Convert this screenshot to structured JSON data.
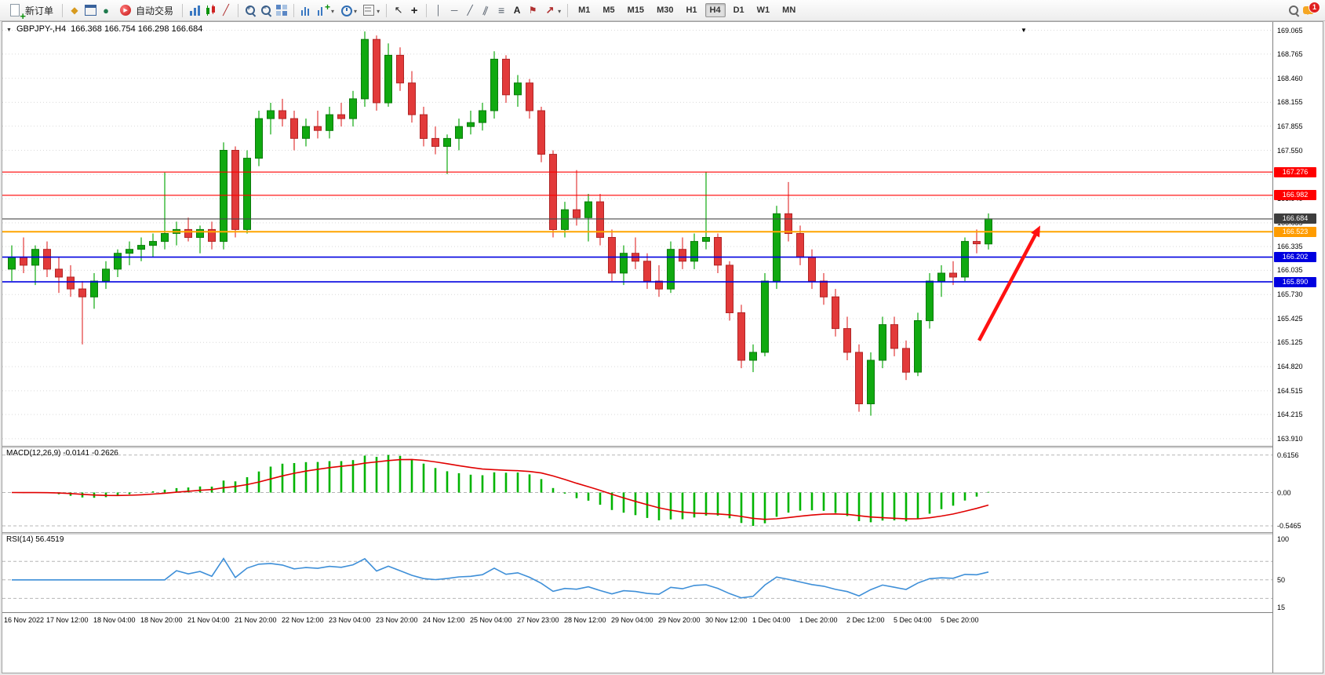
{
  "toolbar": {
    "new_order_label": "新订单",
    "auto_trading_label": "自动交易",
    "timeframes": [
      "M1",
      "M5",
      "M15",
      "M30",
      "H1",
      "H4",
      "D1",
      "W1",
      "MN"
    ],
    "active_timeframe": "H4",
    "notification_count": "1",
    "icons": {
      "new_order": "sheet-with-green-plus",
      "wizard": "gold-diamond",
      "profiles": "blue-window",
      "alerts": "green-circle",
      "auto_trading": "red-play-circle",
      "chart_types": [
        "bar-chart",
        "candlestick-chart",
        "line-chart"
      ],
      "zoom": [
        "zoom-in",
        "zoom-out"
      ],
      "tile_windows": "four-squares",
      "drawing_tools": [
        "cursor",
        "crosshair",
        "vertical-line",
        "horizontal-line",
        "trendline",
        "channel",
        "fibonacci",
        "text",
        "label-flag",
        "arrows"
      ],
      "right": [
        "search-magnifier",
        "chat-bubble-with-badge"
      ]
    }
  },
  "chart": {
    "symbol_label": "GBPJPY-,H4",
    "ohlc_label": "166.368 166.754 166.298 166.684",
    "price_axis_ticks": [
      "169.065",
      "168.765",
      "168.460",
      "168.155",
      "167.855",
      "167.550",
      "167.245",
      "166.940",
      "166.635",
      "166.335",
      "166.035",
      "165.730",
      "165.425",
      "165.125",
      "164.820",
      "164.515",
      "164.215",
      "163.910"
    ],
    "time_axis_labels": [
      "16 Nov 2022",
      "17 Nov 12:00",
      "18 Nov 04:00",
      "18 Nov 20:00",
      "21 Nov 04:00",
      "21 Nov 20:00",
      "22 Nov 12:00",
      "23 Nov 04:00",
      "23 Nov 20:00",
      "24 Nov 12:00",
      "25 Nov 04:00",
      "27 Nov 23:00",
      "28 Nov 12:00",
      "29 Nov 04:00",
      "29 Nov 20:00",
      "30 Nov 12:00",
      "1 Dec 04:00",
      "1 Dec 20:00",
      "2 Dec 12:00",
      "5 Dec 04:00",
      "5 Dec 20:00"
    ]
  },
  "chart_data": {
    "type": "candlestick",
    "symbol": "GBPJPY-",
    "timeframe": "H4",
    "up_color": "#10a910",
    "down_color": "#e23a3a",
    "price_range": [
      163.82,
      169.17
    ],
    "candles": [
      [
        166.05,
        166.35,
        165.9,
        166.2
      ],
      [
        166.2,
        166.45,
        166.0,
        166.1
      ],
      [
        166.1,
        166.35,
        165.85,
        166.3
      ],
      [
        166.3,
        166.4,
        165.95,
        166.05
      ],
      [
        166.05,
        166.2,
        165.75,
        165.95
      ],
      [
        165.95,
        166.1,
        165.7,
        165.8
      ],
      [
        165.8,
        165.9,
        165.1,
        165.7
      ],
      [
        165.7,
        166.0,
        165.55,
        165.9
      ],
      [
        165.9,
        166.15,
        165.8,
        166.05
      ],
      [
        166.05,
        166.3,
        165.95,
        166.25
      ],
      [
        166.25,
        166.4,
        166.1,
        166.3
      ],
      [
        166.3,
        166.45,
        166.15,
        166.35
      ],
      [
        166.35,
        166.5,
        166.2,
        166.4
      ],
      [
        166.4,
        167.27,
        166.3,
        166.5
      ],
      [
        166.5,
        166.65,
        166.35,
        166.55
      ],
      [
        166.55,
        166.7,
        166.4,
        166.45
      ],
      [
        166.45,
        166.6,
        166.25,
        166.55
      ],
      [
        166.55,
        166.65,
        166.3,
        166.4
      ],
      [
        166.4,
        167.65,
        166.3,
        167.55
      ],
      [
        167.55,
        167.6,
        166.45,
        166.55
      ],
      [
        166.55,
        167.55,
        166.5,
        167.45
      ],
      [
        167.45,
        168.05,
        167.35,
        167.95
      ],
      [
        167.95,
        168.15,
        167.75,
        168.05
      ],
      [
        168.05,
        168.2,
        167.85,
        167.95
      ],
      [
        167.95,
        168.05,
        167.55,
        167.7
      ],
      [
        167.7,
        167.95,
        167.6,
        167.85
      ],
      [
        167.85,
        168.05,
        167.7,
        167.8
      ],
      [
        167.8,
        168.1,
        167.7,
        168.0
      ],
      [
        168.0,
        168.15,
        167.85,
        167.95
      ],
      [
        167.95,
        168.3,
        167.85,
        168.2
      ],
      [
        168.2,
        169.05,
        168.1,
        168.95
      ],
      [
        168.95,
        169.0,
        168.05,
        168.15
      ],
      [
        168.15,
        168.9,
        168.1,
        168.75
      ],
      [
        168.75,
        168.85,
        168.3,
        168.4
      ],
      [
        168.4,
        168.55,
        167.9,
        168.0
      ],
      [
        168.0,
        168.1,
        167.6,
        167.7
      ],
      [
        167.7,
        167.85,
        167.5,
        167.6
      ],
      [
        167.6,
        167.75,
        167.25,
        167.7
      ],
      [
        167.7,
        167.95,
        167.55,
        167.85
      ],
      [
        167.85,
        168.05,
        167.75,
        167.9
      ],
      [
        167.9,
        168.15,
        167.8,
        168.05
      ],
      [
        168.05,
        168.8,
        167.95,
        168.7
      ],
      [
        168.7,
        168.75,
        168.15,
        168.25
      ],
      [
        168.25,
        168.5,
        168.1,
        168.4
      ],
      [
        168.4,
        168.45,
        167.95,
        168.05
      ],
      [
        168.05,
        168.1,
        167.4,
        167.5
      ],
      [
        167.5,
        167.55,
        166.45,
        166.55
      ],
      [
        166.55,
        166.9,
        166.45,
        166.8
      ],
      [
        166.8,
        167.3,
        166.6,
        166.7
      ],
      [
        166.7,
        167.0,
        166.4,
        166.9
      ],
      [
        166.9,
        167.0,
        166.35,
        166.45
      ],
      [
        166.45,
        166.55,
        165.9,
        166.0
      ],
      [
        166.0,
        166.35,
        165.85,
        166.25
      ],
      [
        166.25,
        166.45,
        166.05,
        166.15
      ],
      [
        166.15,
        166.25,
        165.8,
        165.9
      ],
      [
        165.9,
        166.1,
        165.7,
        165.8
      ],
      [
        165.8,
        166.4,
        165.75,
        166.3
      ],
      [
        166.3,
        166.45,
        166.05,
        166.15
      ],
      [
        166.15,
        166.5,
        166.05,
        166.4
      ],
      [
        166.4,
        167.28,
        166.3,
        166.45
      ],
      [
        166.45,
        166.5,
        166.0,
        166.1
      ],
      [
        166.1,
        166.15,
        165.4,
        165.5
      ],
      [
        165.5,
        165.6,
        164.8,
        164.9
      ],
      [
        164.9,
        165.1,
        164.75,
        165.0
      ],
      [
        165.0,
        166.0,
        164.95,
        165.9
      ],
      [
        165.9,
        166.85,
        165.8,
        166.75
      ],
      [
        166.75,
        167.15,
        166.4,
        166.5
      ],
      [
        166.5,
        166.6,
        166.1,
        166.2
      ],
      [
        166.2,
        166.3,
        165.8,
        165.9
      ],
      [
        165.9,
        166.0,
        165.6,
        165.7
      ],
      [
        165.7,
        165.8,
        165.2,
        165.3
      ],
      [
        165.3,
        165.45,
        164.9,
        165.0
      ],
      [
        165.0,
        165.1,
        164.25,
        164.35
      ],
      [
        164.35,
        165.0,
        164.2,
        164.9
      ],
      [
        164.9,
        165.45,
        164.8,
        165.35
      ],
      [
        165.35,
        165.45,
        164.95,
        165.05
      ],
      [
        165.05,
        165.15,
        164.65,
        164.75
      ],
      [
        164.75,
        165.5,
        164.7,
        165.4
      ],
      [
        165.4,
        166.0,
        165.3,
        165.9
      ],
      [
        165.9,
        166.1,
        165.7,
        166.0
      ],
      [
        166.0,
        166.15,
        165.85,
        165.95
      ],
      [
        165.95,
        166.45,
        165.9,
        166.4
      ],
      [
        166.4,
        166.55,
        166.25,
        166.37
      ],
      [
        166.368,
        166.754,
        166.298,
        166.684
      ]
    ],
    "levels": [
      {
        "value": 167.276,
        "label": "167.276",
        "color": "#ff0000",
        "badge": "#ff0000",
        "width": 1.2
      },
      {
        "value": 166.982,
        "label": "166.982",
        "color": "#ff0000",
        "badge": "#ff0000",
        "width": 1.2
      },
      {
        "value": 166.684,
        "label": "166.684",
        "color": "#4a4a4a",
        "badge": "#3d3d3d",
        "width": 1.1,
        "role": "current-price"
      },
      {
        "value": 166.523,
        "label": "166.523",
        "color": "#ffa500",
        "badge": "#ff9c00",
        "width": 2
      },
      {
        "value": 166.202,
        "label": "166.202",
        "color": "#0000e0",
        "badge": "#0000e0",
        "width": 1.6
      },
      {
        "value": 165.89,
        "label": "165.890",
        "color": "#0000e0",
        "badge": "#0000e0",
        "width": 1.6
      }
    ],
    "annotation": {
      "type": "arrow",
      "color": "#ff1111",
      "from_index": 82.2,
      "from_price": 165.15,
      "to_index": 87.4,
      "to_price": 166.6
    },
    "macd": {
      "label": "MACD(12,26,9) -0.0141 -0.2626",
      "fast": 12,
      "slow": 26,
      "signal_period": 9,
      "value": -0.0141,
      "signal_value": -0.2626,
      "scale_labels": [
        "0.6156",
        "0.00",
        "-0.5465"
      ],
      "range": [
        -0.65,
        0.74
      ],
      "histogram_color": "#00b400",
      "signal_color": "#e00000"
    },
    "rsi": {
      "label": "RSI(14) 56.4519",
      "period": 14,
      "value": 56.4519,
      "scale_labels": [
        "100",
        "50",
        "15"
      ],
      "levels_dashed": [
        70,
        50,
        30
      ],
      "range": [
        15,
        100
      ],
      "line_color": "#3e8fd8"
    }
  }
}
